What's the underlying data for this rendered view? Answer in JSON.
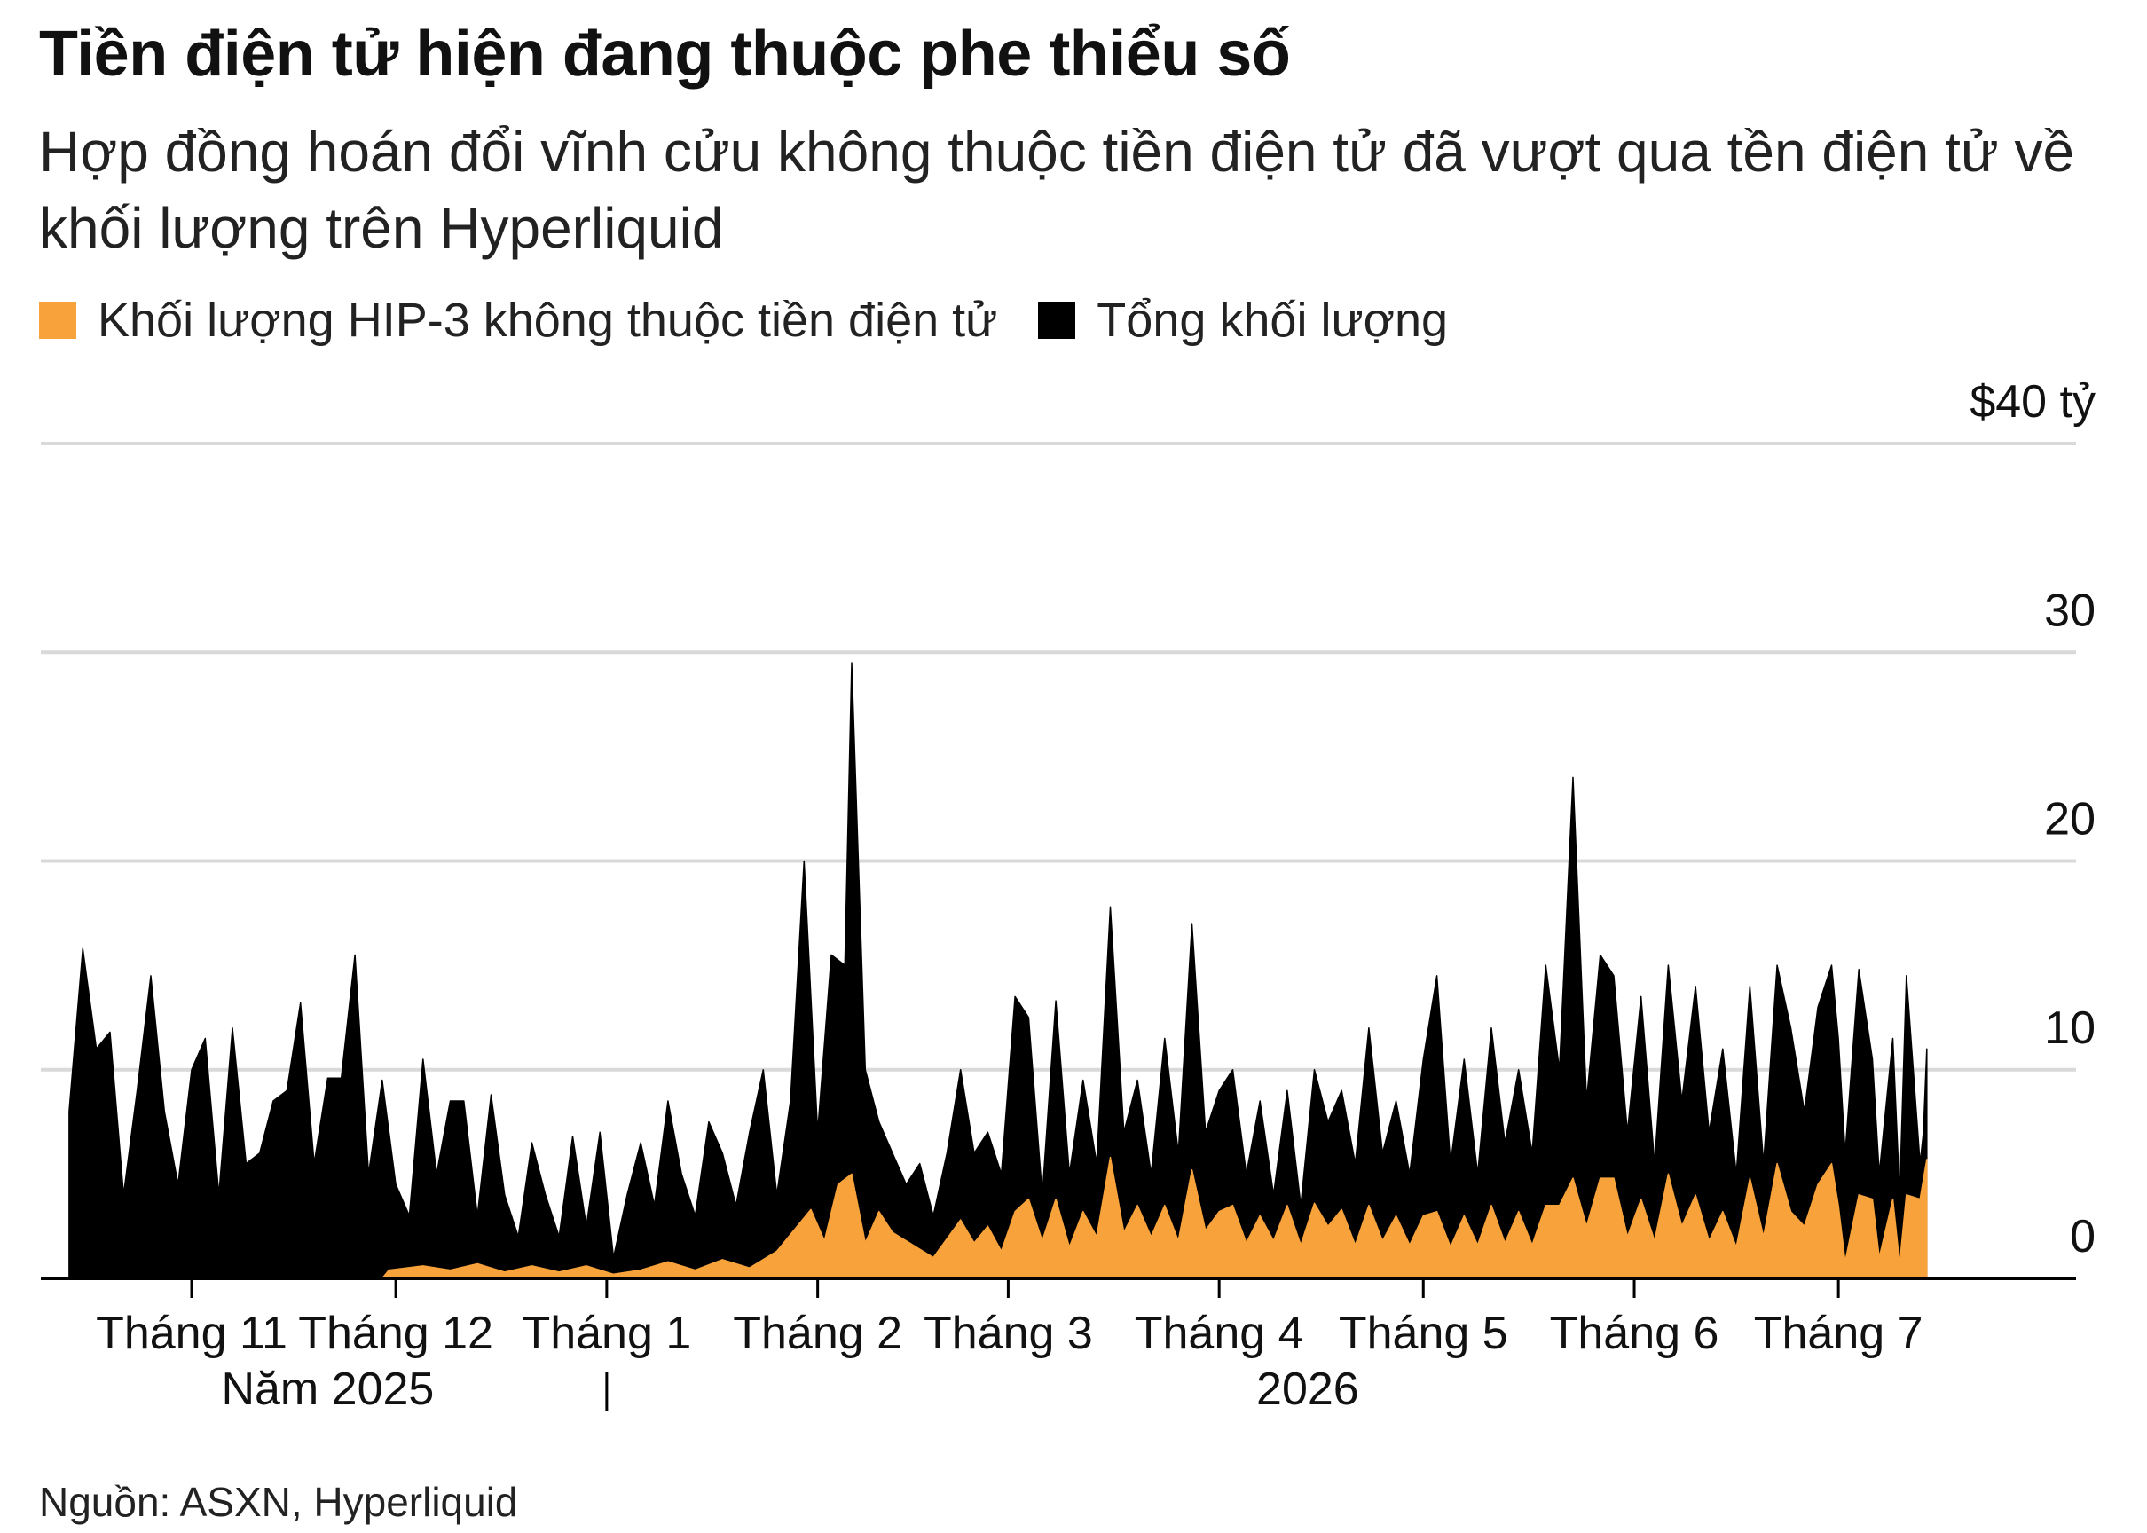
{
  "title": "Tiền điện tử hiện đang thuộc phe thiểu số",
  "subtitle": "Hợp đồng hoán đổi vĩnh cửu không thuộc tiền điện tử đã vượt qua tền điện tử về khối lượng trên Hyperliquid",
  "legend": [
    {
      "label": "Khối lượng HIP-3 không thuộc tiền điện tử",
      "color": "#f7a23b"
    },
    {
      "label": "Tổng khối lượng",
      "color": "#000000"
    }
  ],
  "source": "Nguồn: ASXN, Hyperliquid",
  "chart_data": {
    "type": "area",
    "ylim": [
      0,
      40
    ],
    "y_ticks": [
      {
        "value": 40,
        "label": "$40 tỷ"
      },
      {
        "value": 30,
        "label": "30"
      },
      {
        "value": 20,
        "label": "20"
      },
      {
        "value": 10,
        "label": "10"
      },
      {
        "value": 0,
        "label": "0"
      }
    ],
    "x_ticks": [
      {
        "label": "Tháng 11",
        "day": 0
      },
      {
        "label": "Tháng 12",
        "day": 30
      },
      {
        "label": "Tháng 1",
        "day": 61
      },
      {
        "label": "Tháng 2",
        "day": 92
      },
      {
        "label": "Tháng 3",
        "day": 120
      },
      {
        "label": "Tháng 4",
        "day": 151
      },
      {
        "label": "Tháng 5",
        "day": 181
      },
      {
        "label": "Tháng 6",
        "day": 212
      },
      {
        "label": "Tháng 7",
        "day": 242
      }
    ],
    "year_labels": [
      {
        "label": "Năm 2025",
        "day": 20
      },
      {
        "label": "2026",
        "day": 164
      }
    ],
    "year_divider_day": 61,
    "x_range": [
      -18,
      262
    ],
    "grid": true,
    "legend_position": "top-left",
    "series": [
      {
        "name": "Tổng khối lượng",
        "color": "#000000",
        "points": [
          [
            -18,
            8
          ],
          [
            -16,
            15.8
          ],
          [
            -14,
            11
          ],
          [
            -12,
            11.8
          ],
          [
            -10,
            4
          ],
          [
            -8,
            9
          ],
          [
            -6,
            14.5
          ],
          [
            -4,
            8
          ],
          [
            -2,
            4.5
          ],
          [
            0,
            10
          ],
          [
            2,
            11.5
          ],
          [
            4,
            4
          ],
          [
            6,
            12
          ],
          [
            8,
            5.5
          ],
          [
            10,
            6
          ],
          [
            12,
            8.5
          ],
          [
            14,
            9
          ],
          [
            16,
            13.2
          ],
          [
            18,
            5.5
          ],
          [
            20,
            9.6
          ],
          [
            22,
            9.6
          ],
          [
            24,
            15.5
          ],
          [
            26,
            5
          ],
          [
            28,
            9.5
          ],
          [
            30,
            4.5
          ],
          [
            32,
            3
          ],
          [
            34,
            10.5
          ],
          [
            36,
            5
          ],
          [
            38,
            8.5
          ],
          [
            40,
            8.5
          ],
          [
            42,
            3
          ],
          [
            44,
            8.8
          ],
          [
            46,
            4
          ],
          [
            48,
            2
          ],
          [
            50,
            6.5
          ],
          [
            52,
            4
          ],
          [
            54,
            2
          ],
          [
            56,
            6.8
          ],
          [
            58,
            2.5
          ],
          [
            60,
            7
          ],
          [
            62,
            1
          ],
          [
            64,
            4
          ],
          [
            66,
            6.5
          ],
          [
            68,
            3.5
          ],
          [
            70,
            8.5
          ],
          [
            72,
            5
          ],
          [
            74,
            3
          ],
          [
            76,
            7.5
          ],
          [
            78,
            6
          ],
          [
            80,
            3.5
          ],
          [
            82,
            7
          ],
          [
            84,
            10
          ],
          [
            86,
            4
          ],
          [
            88,
            8.5
          ],
          [
            90,
            20
          ],
          [
            92,
            7
          ],
          [
            94,
            15.5
          ],
          [
            96,
            15
          ],
          [
            97,
            29.5
          ],
          [
            99,
            10
          ],
          [
            101,
            7.5
          ],
          [
            103,
            6
          ],
          [
            105,
            4.5
          ],
          [
            107,
            5.5
          ],
          [
            109,
            3
          ],
          [
            111,
            6
          ],
          [
            113,
            10
          ],
          [
            115,
            6
          ],
          [
            117,
            7
          ],
          [
            119,
            5
          ],
          [
            121,
            13.5
          ],
          [
            123,
            12.5
          ],
          [
            125,
            4
          ],
          [
            127,
            13.3
          ],
          [
            129,
            5
          ],
          [
            131,
            9.5
          ],
          [
            133,
            5.5
          ],
          [
            135,
            17.8
          ],
          [
            137,
            7
          ],
          [
            139,
            9.5
          ],
          [
            141,
            5
          ],
          [
            143,
            11.5
          ],
          [
            145,
            6
          ],
          [
            147,
            17
          ],
          [
            149,
            7
          ],
          [
            151,
            9
          ],
          [
            153,
            10
          ],
          [
            155,
            5
          ],
          [
            157,
            8.5
          ],
          [
            159,
            4
          ],
          [
            161,
            9
          ],
          [
            163,
            3.5
          ],
          [
            165,
            10
          ],
          [
            167,
            7.5
          ],
          [
            169,
            9
          ],
          [
            171,
            5.5
          ],
          [
            173,
            12
          ],
          [
            175,
            6
          ],
          [
            177,
            8.5
          ],
          [
            179,
            5
          ],
          [
            181,
            10.5
          ],
          [
            183,
            14.5
          ],
          [
            185,
            5.5
          ],
          [
            187,
            10.5
          ],
          [
            189,
            5
          ],
          [
            191,
            12
          ],
          [
            193,
            6.5
          ],
          [
            195,
            10
          ],
          [
            197,
            6
          ],
          [
            199,
            15
          ],
          [
            201,
            10
          ],
          [
            203,
            24
          ],
          [
            205,
            8.5
          ],
          [
            207,
            15.5
          ],
          [
            209,
            14.5
          ],
          [
            211,
            7
          ],
          [
            213,
            13.5
          ],
          [
            215,
            5.5
          ],
          [
            217,
            15
          ],
          [
            219,
            8.5
          ],
          [
            221,
            14
          ],
          [
            223,
            7
          ],
          [
            225,
            11
          ],
          [
            227,
            5
          ],
          [
            229,
            14
          ],
          [
            231,
            5.5
          ],
          [
            233,
            15
          ],
          [
            235,
            12
          ],
          [
            237,
            8
          ],
          [
            239,
            13
          ],
          [
            241,
            15
          ],
          [
            242,
            11.5
          ],
          [
            243,
            6
          ],
          [
            245,
            14.8
          ],
          [
            247,
            10.5
          ],
          [
            248,
            5
          ],
          [
            250,
            11.5
          ],
          [
            251,
            4
          ],
          [
            252,
            14.5
          ],
          [
            254,
            5.5
          ],
          [
            254.5,
            7
          ],
          [
            255,
            11
          ]
        ]
      },
      {
        "name": "Khối lượng HIP-3 không thuộc tiền điện tử",
        "color": "#f7a23b",
        "points": [
          [
            28,
            0
          ],
          [
            29,
            0.4
          ],
          [
            34,
            0.6
          ],
          [
            38,
            0.4
          ],
          [
            42,
            0.7
          ],
          [
            46,
            0.3
          ],
          [
            50,
            0.6
          ],
          [
            54,
            0.3
          ],
          [
            58,
            0.6
          ],
          [
            62,
            0.2
          ],
          [
            66,
            0.4
          ],
          [
            70,
            0.8
          ],
          [
            74,
            0.4
          ],
          [
            78,
            0.9
          ],
          [
            82,
            0.5
          ],
          [
            86,
            1.3
          ],
          [
            89,
            2.5
          ],
          [
            91,
            3.3
          ],
          [
            93,
            1.8
          ],
          [
            95,
            4.5
          ],
          [
            97,
            5
          ],
          [
            99,
            1.7
          ],
          [
            101,
            3.2
          ],
          [
            103,
            2.2
          ],
          [
            105,
            1.8
          ],
          [
            107,
            1.4
          ],
          [
            109,
            1
          ],
          [
            111,
            1.9
          ],
          [
            113,
            2.8
          ],
          [
            115,
            1.7
          ],
          [
            117,
            2.5
          ],
          [
            119,
            1.3
          ],
          [
            121,
            3.2
          ],
          [
            123,
            3.8
          ],
          [
            125,
            1.8
          ],
          [
            127,
            3.8
          ],
          [
            129,
            1.5
          ],
          [
            131,
            3.2
          ],
          [
            133,
            2
          ],
          [
            135,
            5.8
          ],
          [
            137,
            2.2
          ],
          [
            139,
            3.5
          ],
          [
            141,
            2
          ],
          [
            143,
            3.5
          ],
          [
            145,
            1.8
          ],
          [
            147,
            5.2
          ],
          [
            149,
            2.3
          ],
          [
            151,
            3.2
          ],
          [
            153,
            3.5
          ],
          [
            155,
            1.7
          ],
          [
            157,
            3
          ],
          [
            159,
            1.8
          ],
          [
            161,
            3.5
          ],
          [
            163,
            1.6
          ],
          [
            165,
            3.6
          ],
          [
            167,
            2.5
          ],
          [
            169,
            3.3
          ],
          [
            171,
            1.6
          ],
          [
            173,
            3.5
          ],
          [
            175,
            1.8
          ],
          [
            177,
            3
          ],
          [
            179,
            1.6
          ],
          [
            181,
            3
          ],
          [
            183,
            3.2
          ],
          [
            185,
            1.5
          ],
          [
            187,
            3
          ],
          [
            189,
            1.6
          ],
          [
            191,
            3.5
          ],
          [
            193,
            1.7
          ],
          [
            195,
            3.2
          ],
          [
            197,
            1.6
          ],
          [
            199,
            3.5
          ],
          [
            201,
            3.5
          ],
          [
            203,
            4.8
          ],
          [
            205,
            2.5
          ],
          [
            207,
            4.8
          ],
          [
            209,
            4.8
          ],
          [
            211,
            2
          ],
          [
            213,
            3.8
          ],
          [
            215,
            1.8
          ],
          [
            217,
            5
          ],
          [
            219,
            2.5
          ],
          [
            221,
            4
          ],
          [
            223,
            1.8
          ],
          [
            225,
            3.2
          ],
          [
            227,
            1.5
          ],
          [
            229,
            4.8
          ],
          [
            231,
            2
          ],
          [
            233,
            5.5
          ],
          [
            235,
            3.2
          ],
          [
            237,
            2.5
          ],
          [
            239,
            4.5
          ],
          [
            241,
            5.5
          ],
          [
            242,
            3.5
          ],
          [
            243,
            0.8
          ],
          [
            245,
            4
          ],
          [
            247,
            3.8
          ],
          [
            248,
            1
          ],
          [
            250,
            3.8
          ],
          [
            251,
            0.7
          ],
          [
            252,
            4
          ],
          [
            254,
            3.8
          ],
          [
            255,
            5.7
          ]
        ]
      }
    ]
  }
}
